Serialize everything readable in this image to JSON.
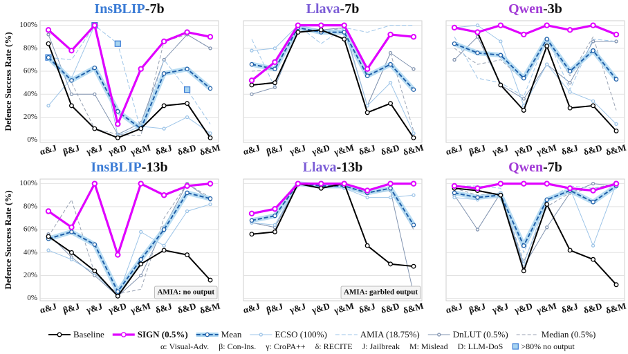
{
  "chart_data": [
    {
      "type": "line",
      "model": "InsBLIP",
      "variant": "-7b",
      "model_color": "#3a7bd5",
      "y_label": "Defence Success Rate (%)",
      "categories": [
        "α&J",
        "β&J",
        "γ&J",
        "γ&D",
        "γ&M",
        "δ&J",
        "δ&D",
        "δ&M"
      ],
      "ylim": [
        -2,
        104
      ],
      "yticks": [
        {
          "value": 0,
          "label": "0%"
        },
        {
          "value": 20,
          "label": "20%"
        },
        {
          "value": 40,
          "label": "40%"
        },
        {
          "value": 60,
          "label": "60%"
        },
        {
          "value": 80,
          "label": "80%"
        },
        {
          "value": 100,
          "label": "100%"
        }
      ],
      "grid": true,
      "series": [
        {
          "values": [
            84,
            30,
            10,
            2,
            10,
            30,
            32,
            2
          ]
        },
        {
          "values": [
            96,
            78,
            100,
            14,
            62,
            86,
            94,
            90
          ]
        },
        {
          "values": [
            72,
            52,
            63,
            25,
            10,
            58,
            62,
            45
          ]
        },
        {
          "values": [
            30,
            54,
            100,
            4,
            12,
            10,
            20,
            6
          ]
        },
        {
          "values": [
            72,
            70,
            100,
            84,
            8,
            70,
            44,
            14
          ],
          "no_output_points": [
            0,
            2,
            3,
            6
          ]
        },
        {
          "values": [
            92,
            40,
            40,
            5,
            15,
            70,
            92,
            80
          ]
        },
        {
          "values": [
            70,
            50,
            10,
            5,
            4,
            86,
            92,
            80
          ]
        }
      ]
    },
    {
      "type": "line",
      "model": "Llava",
      "variant": "-7b",
      "model_color": "#7b5cd6",
      "categories": [
        "α&J",
        "β&J",
        "γ&J",
        "γ&D",
        "γ&M",
        "δ&J",
        "δ&D",
        "δ&M"
      ],
      "ylim": [
        -2,
        104
      ],
      "yticks": [
        0,
        20,
        40,
        60,
        80,
        100
      ],
      "grid": true,
      "series": [
        {
          "values": [
            48,
            50,
            94,
            96,
            88,
            24,
            32,
            2
          ]
        },
        {
          "values": [
            52,
            68,
            100,
            100,
            100,
            62,
            92,
            90
          ]
        },
        {
          "values": [
            66,
            62,
            98,
            94,
            94,
            56,
            66,
            44
          ]
        },
        {
          "values": [
            78,
            80,
            100,
            96,
            96,
            30,
            50,
            6
          ]
        },
        {
          "values": [
            88,
            46,
            100,
            84,
            98,
            94,
            100,
            100
          ]
        },
        {
          "values": [
            40,
            46,
            96,
            96,
            98,
            30,
            76,
            62
          ]
        },
        {
          "values": [
            60,
            62,
            96,
            94,
            98,
            30,
            76,
            8
          ]
        }
      ]
    },
    {
      "type": "line",
      "model": "Qwen",
      "variant": "-3b",
      "model_color": "#a23bd6",
      "categories": [
        "α&J",
        "β&J",
        "γ&J",
        "γ&D",
        "γ&M",
        "δ&J",
        "δ&D",
        "δ&M"
      ],
      "ylim": [
        -2,
        104
      ],
      "yticks": [
        0,
        20,
        40,
        60,
        80,
        100
      ],
      "grid": true,
      "series": [
        {
          "values": [
            98,
            94,
            48,
            26,
            82,
            28,
            30,
            8
          ]
        },
        {
          "values": [
            98,
            94,
            100,
            92,
            100,
            96,
            100,
            92
          ]
        },
        {
          "values": [
            84,
            76,
            74,
            54,
            88,
            60,
            78,
            53
          ]
        },
        {
          "values": [
            98,
            100,
            86,
            30,
            66,
            42,
            34,
            14
          ]
        },
        {
          "values": [
            90,
            54,
            50,
            38,
            90,
            44,
            88,
            86
          ]
        },
        {
          "values": [
            70,
            90,
            48,
            36,
            66,
            50,
            86,
            86
          ]
        },
        {
          "values": [
            80,
            66,
            70,
            52,
            88,
            56,
            90,
            26
          ]
        }
      ]
    },
    {
      "type": "line",
      "model": "InsBLIP",
      "variant": "-13b",
      "model_color": "#3a7bd5",
      "y_label": "Defence Success Rate (%)",
      "annotation": "AMIA: no output",
      "categories": [
        "α&J",
        "β&J",
        "γ&J",
        "γ&D",
        "γ&M",
        "δ&J",
        "δ&D",
        "δ&M"
      ],
      "ylim": [
        -2,
        104
      ],
      "yticks": [
        {
          "value": 0,
          "label": "0%"
        },
        {
          "value": 20,
          "label": "20%"
        },
        {
          "value": 40,
          "label": "40%"
        },
        {
          "value": 60,
          "label": "60%"
        },
        {
          "value": 80,
          "label": "80%"
        },
        {
          "value": 100,
          "label": "100%"
        }
      ],
      "grid": true,
      "series": [
        {
          "values": [
            54,
            40,
            24,
            2,
            30,
            42,
            38,
            16
          ]
        },
        {
          "values": [
            76,
            62,
            100,
            38,
            100,
            90,
            98,
            100
          ]
        },
        {
          "values": [
            52,
            58,
            47,
            6,
            34,
            60,
            92,
            87
          ]
        },
        {
          "values": [
            42,
            34,
            22,
            2,
            58,
            46,
            76,
            82
          ]
        },
        {
          "values": [
            null,
            null,
            null,
            null,
            null,
            null,
            null,
            null
          ]
        },
        {
          "values": [
            56,
            36,
            20,
            2,
            20,
            62,
            100,
            86
          ]
        },
        {
          "values": [
            54,
            86,
            22,
            4,
            8,
            70,
            100,
            88
          ]
        }
      ]
    },
    {
      "type": "line",
      "model": "Llava",
      "variant": "-13b",
      "model_color": "#7b5cd6",
      "annotation": "AMIA: garbled output",
      "categories": [
        "α&J",
        "β&J",
        "γ&J",
        "γ&D",
        "γ&M",
        "δ&J",
        "δ&D",
        "δ&M"
      ],
      "ylim": [
        -2,
        104
      ],
      "yticks": [
        0,
        20,
        40,
        60,
        80,
        100
      ],
      "grid": true,
      "series": [
        {
          "values": [
            56,
            58,
            100,
            96,
            100,
            46,
            30,
            28
          ]
        },
        {
          "values": [
            74,
            78,
            100,
            100,
            100,
            94,
            100,
            100
          ]
        },
        {
          "values": [
            68,
            72,
            100,
            98,
            98,
            92,
            96,
            64
          ]
        },
        {
          "values": [
            66,
            64,
            100,
            98,
            96,
            88,
            88,
            90
          ]
        },
        {
          "values": [
            null,
            null,
            null,
            null,
            null,
            null,
            null,
            null
          ]
        },
        {
          "values": [
            66,
            62,
            100,
            100,
            98,
            92,
            94,
            4
          ]
        },
        {
          "values": [
            66,
            62,
            100,
            100,
            96,
            92,
            96,
            60
          ]
        }
      ]
    },
    {
      "type": "line",
      "model": "Qwen",
      "variant": "-7b",
      "model_color": "#a23bd6",
      "categories": [
        "α&J",
        "β&J",
        "γ&J",
        "γ&D",
        "γ&M",
        "δ&J",
        "δ&D",
        "δ&M"
      ],
      "ylim": [
        -2,
        104
      ],
      "yticks": [
        0,
        20,
        40,
        60,
        80,
        100
      ],
      "grid": true,
      "series": [
        {
          "values": [
            96,
            94,
            90,
            24,
            82,
            42,
            34,
            12
          ]
        },
        {
          "values": [
            98,
            96,
            100,
            100,
            100,
            96,
            94,
            100
          ]
        },
        {
          "values": [
            92,
            88,
            90,
            46,
            86,
            94,
            84,
            98
          ]
        },
        {
          "values": [
            88,
            86,
            92,
            30,
            86,
            96,
            46,
            100
          ]
        },
        {
          "values": [
            98,
            98,
            96,
            40,
            86,
            98,
            96,
            98
          ]
        },
        {
          "values": [
            90,
            60,
            92,
            28,
            62,
            92,
            100,
            98
          ]
        },
        {
          "values": [
            96,
            90,
            92,
            32,
            80,
            92,
            96,
            100
          ]
        }
      ]
    }
  ],
  "legend": {
    "items": [
      {
        "name": "Baseline",
        "color": "#000000",
        "dashed": false
      },
      {
        "name": "SIGN (0.5%)",
        "color": "#e000ff",
        "dashed": false
      },
      {
        "name": "Mean",
        "color": "#1f5fa8",
        "dashed": true
      },
      {
        "name": "ECSO (100%)",
        "color": "#9ec5e8",
        "dashed": false
      },
      {
        "name": "AMIA (18.75%)",
        "color": "#9ec5e8",
        "dashed": true
      },
      {
        "name": "DnLUT (0.5%)",
        "color": "#8294b0",
        "dashed": false
      },
      {
        "name": "Median (0.5%)",
        "color": "#98a2b3",
        "dashed": true
      }
    ],
    "notes": [
      "α: Visual-Adv.",
      "β: Con-Ins.",
      "γ: CroPA++",
      "δ: RECITE",
      "J: Jailbreak",
      "M: Mislead",
      "D: LLM-DoS",
      ">80% no output"
    ]
  }
}
